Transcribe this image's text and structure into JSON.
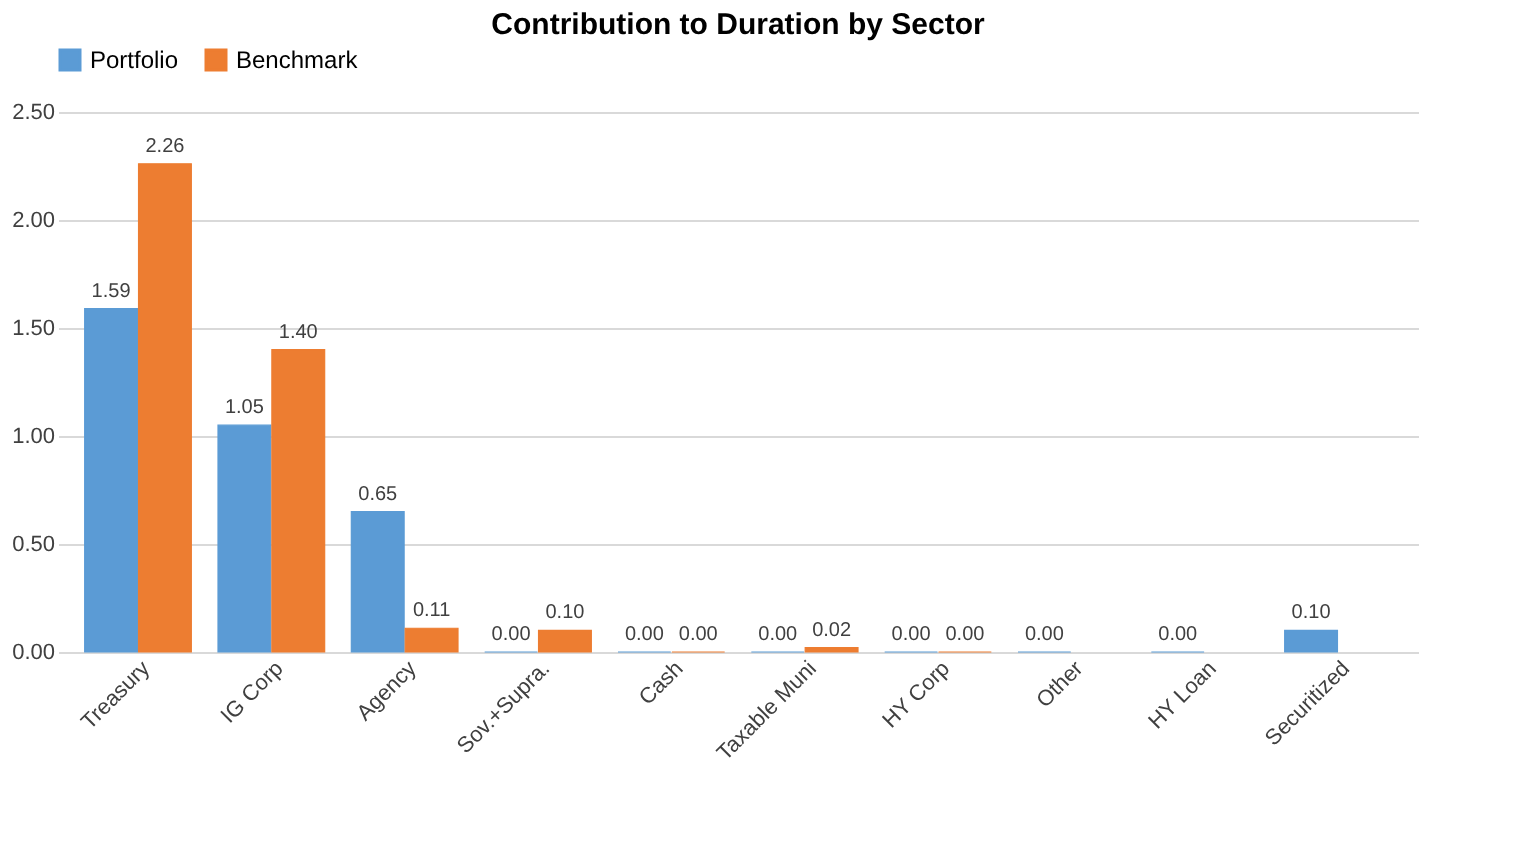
{
  "chart_data": {
    "type": "bar",
    "title": "Contribution to Duration by Sector",
    "categories": [
      "Treasury",
      "IG Corp",
      "Agency",
      "Sov.+Supra.",
      "Cash",
      "Taxable Muni",
      "HY Corp",
      "Other",
      "HY Loan",
      "Securitized"
    ],
    "series": [
      {
        "name": "Portfolio",
        "color": "#5b9bd5",
        "values": [
          1.59,
          1.05,
          0.65,
          0,
          0,
          0,
          0,
          0,
          0,
          0.1
        ],
        "value_labels": [
          "1.59",
          "1.05",
          "0.65",
          "0.00",
          "0.00",
          "0.00",
          "0.00",
          "0.00",
          "0.00",
          "0.10"
        ]
      },
      {
        "name": "Benchmark",
        "color": "#ed7d31",
        "values": [
          2.26,
          1.4,
          0.11,
          0.1,
          0,
          0.02,
          0,
          null,
          null,
          null
        ],
        "value_labels": [
          "2.26",
          "1.40",
          "0.11",
          "0.10",
          "0.00",
          "0.02",
          "0.00",
          null,
          null,
          null
        ]
      }
    ],
    "ylim": [
      0,
      2.5
    ],
    "yticks": [
      {
        "value": 0,
        "label": "0.00"
      },
      {
        "value": 0.5,
        "label": "0.50"
      },
      {
        "value": 1,
        "label": "1.00"
      },
      {
        "value": 1.5,
        "label": "1.50"
      },
      {
        "value": 2,
        "label": "2.00"
      },
      {
        "value": 2.5,
        "label": "2.50"
      }
    ],
    "grid": "y",
    "legend": "top"
  }
}
